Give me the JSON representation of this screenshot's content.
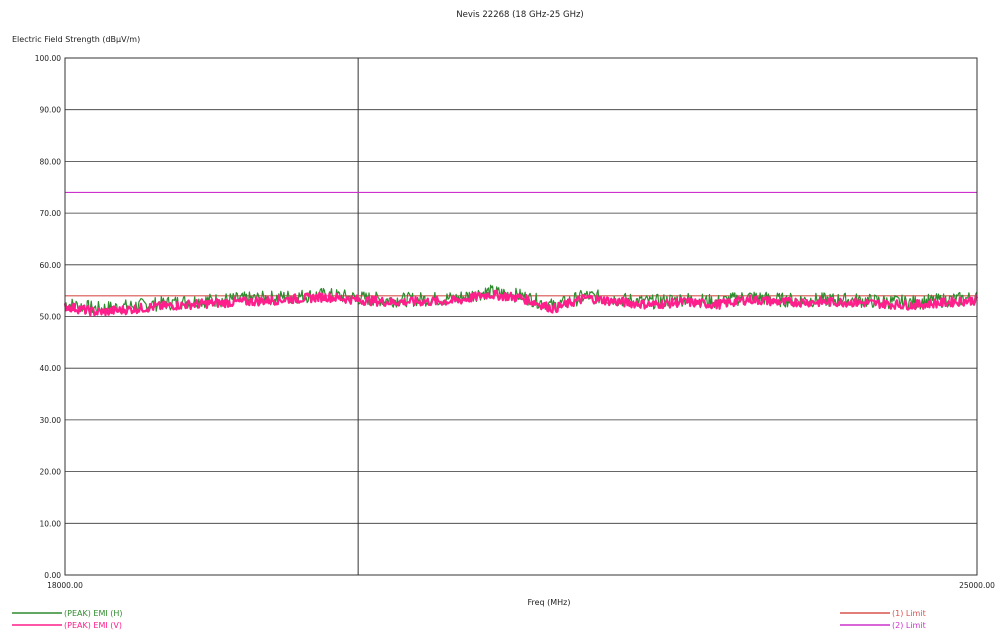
{
  "chart_data": {
    "type": "line",
    "title": "Nevis 22268 (18 GHz-25 GHz)",
    "xlabel": "Freq (MHz)",
    "ylabel": "Electric Field Strength (dBµV/m)",
    "xlim": [
      18000,
      25000
    ],
    "ylim": [
      0,
      100
    ],
    "x_tick_labels": [
      "18000.00",
      "25000.00"
    ],
    "y_tick_labels": [
      "0.00",
      "10.00",
      "20.00",
      "30.00",
      "40.00",
      "50.00",
      "60.00",
      "70.00",
      "80.00",
      "90.00",
      "100.00"
    ],
    "grid": true,
    "marker_frequency": 20250,
    "series": [
      {
        "name": "(PEAK) EMI (H)",
        "color": "#2e8b2e",
        "x": [
          18000,
          18250,
          18500,
          18750,
          19000,
          19500,
          20000,
          20250,
          20500,
          21000,
          21250,
          21500,
          21750,
          22000,
          22250,
          22500,
          22750,
          23000,
          23250,
          23500,
          24000,
          24500,
          25000
        ],
        "y": [
          52.5,
          51.5,
          52,
          52.5,
          53,
          53.5,
          54.2,
          53.6,
          53.2,
          53.5,
          54.8,
          54,
          52,
          54,
          53.3,
          52.8,
          53.4,
          52.8,
          53.8,
          53.2,
          53.2,
          52.7,
          53.6
        ]
      },
      {
        "name": "(PEAK) EMI (V)",
        "color": "#ff1e8c",
        "x": [
          18000,
          18250,
          18500,
          18750,
          19000,
          19500,
          20000,
          20250,
          20500,
          21000,
          21250,
          21500,
          21750,
          22000,
          22250,
          22500,
          22750,
          23000,
          23250,
          23500,
          24000,
          24500,
          25000
        ],
        "y": [
          52,
          50.8,
          51.4,
          52,
          52.4,
          53,
          53.8,
          53.2,
          52.8,
          53,
          54.3,
          53.6,
          51.5,
          53.6,
          52.8,
          52.3,
          52.8,
          52.3,
          53.3,
          52.8,
          52.8,
          52.2,
          53.2
        ]
      },
      {
        "name": "(1) Limit",
        "color": "#d9534f",
        "x": [
          18000,
          25000
        ],
        "y": [
          54,
          54
        ]
      },
      {
        "name": "(2) Limit",
        "color": "#cc33cc",
        "x": [
          18000,
          25000
        ],
        "y": [
          74,
          74
        ]
      }
    ],
    "legend_placement": "bottom"
  }
}
